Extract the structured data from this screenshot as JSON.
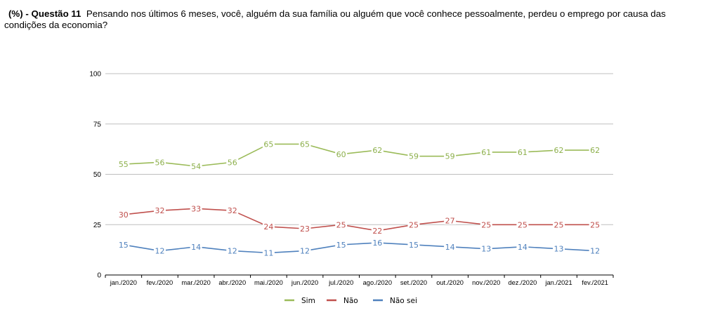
{
  "header": {
    "prefix": "(%) - Questão 11",
    "question": "Pensando nos últimos 6 meses, você, alguém da sua família ou alguém que você conhece pessoalmente, perdeu o emprego por causa das condições da economia?"
  },
  "chart_data": {
    "type": "line",
    "categories": [
      "jan./2020",
      "fev./2020",
      "mar./2020",
      "abr./2020",
      "mai./2020",
      "jun./2020",
      "jul./2020",
      "ago./2020",
      "set./2020",
      "out./2020",
      "nov./2020",
      "dez./2020",
      "jan./2021",
      "fev./2021"
    ],
    "series": [
      {
        "name": "Sim",
        "color": "#9BBB59",
        "label_color": "#8DB04C",
        "values": [
          55,
          56,
          54,
          56,
          65,
          65,
          60,
          62,
          59,
          59,
          61,
          61,
          62,
          62
        ]
      },
      {
        "name": "Não",
        "color": "#C0504D",
        "label_color": "#C0504D",
        "values": [
          30,
          32,
          33,
          32,
          24,
          23,
          25,
          22,
          25,
          27,
          25,
          25,
          25,
          25
        ]
      },
      {
        "name": "Não sei",
        "color": "#4F81BD",
        "label_color": "#4F81BD",
        "values": [
          15,
          12,
          14,
          12,
          11,
          12,
          15,
          16,
          15,
          14,
          13,
          14,
          13,
          12
        ]
      }
    ],
    "ylim": [
      0,
      100
    ],
    "yticks": [
      0,
      25,
      50,
      75,
      100
    ],
    "grid": true,
    "legend_position": "bottom"
  }
}
